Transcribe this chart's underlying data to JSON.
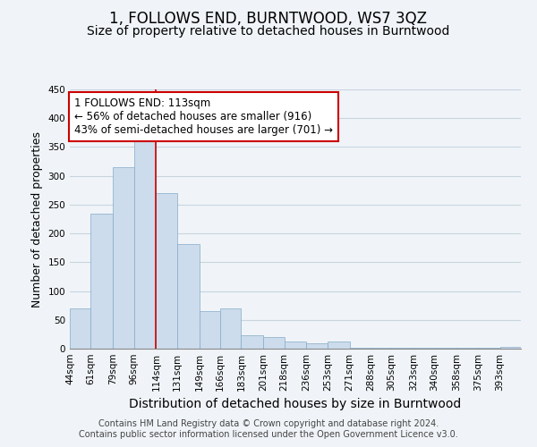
{
  "title": "1, FOLLOWS END, BURNTWOOD, WS7 3QZ",
  "subtitle": "Size of property relative to detached houses in Burntwood",
  "xlabel": "Distribution of detached houses by size in Burntwood",
  "ylabel": "Number of detached properties",
  "bar_left_edges": [
    44,
    61,
    79,
    96,
    114,
    131,
    149,
    166,
    183,
    201,
    218,
    236,
    253,
    271,
    288,
    305,
    323,
    340,
    358,
    375,
    393
  ],
  "bar_widths": [
    17,
    18,
    17,
    18,
    17,
    18,
    17,
    17,
    18,
    17,
    18,
    17,
    18,
    17,
    17,
    18,
    17,
    18,
    17,
    18,
    17
  ],
  "bar_heights": [
    70,
    235,
    315,
    370,
    270,
    182,
    65,
    70,
    23,
    20,
    12,
    10,
    13,
    2,
    2,
    2,
    2,
    2,
    2,
    2,
    3
  ],
  "bar_color": "#ccdcec",
  "bar_edge_color": "#85aac8",
  "grid_color": "#c8d4e0",
  "vline_x": 114,
  "vline_color": "#cc0000",
  "annotation_lines": [
    "1 FOLLOWS END: 113sqm",
    "← 56% of detached houses are smaller (916)",
    "43% of semi-detached houses are larger (701) →"
  ],
  "annotation_box_color": "#ffffff",
  "annotation_box_edge": "#cc0000",
  "ylim": [
    0,
    450
  ],
  "yticks": [
    0,
    50,
    100,
    150,
    200,
    250,
    300,
    350,
    400,
    450
  ],
  "x_tick_labels": [
    "44sqm",
    "61sqm",
    "79sqm",
    "96sqm",
    "114sqm",
    "131sqm",
    "149sqm",
    "166sqm",
    "183sqm",
    "201sqm",
    "218sqm",
    "236sqm",
    "253sqm",
    "271sqm",
    "288sqm",
    "305sqm",
    "323sqm",
    "340sqm",
    "358sqm",
    "375sqm",
    "393sqm"
  ],
  "footer_line1": "Contains HM Land Registry data © Crown copyright and database right 2024.",
  "footer_line2": "Contains public sector information licensed under the Open Government Licence v3.0.",
  "title_fontsize": 12,
  "subtitle_fontsize": 10,
  "xlabel_fontsize": 10,
  "ylabel_fontsize": 9,
  "tick_fontsize": 7.5,
  "annotation_fontsize": 8.5,
  "footer_fontsize": 7,
  "background_color": "#f0f4f8"
}
